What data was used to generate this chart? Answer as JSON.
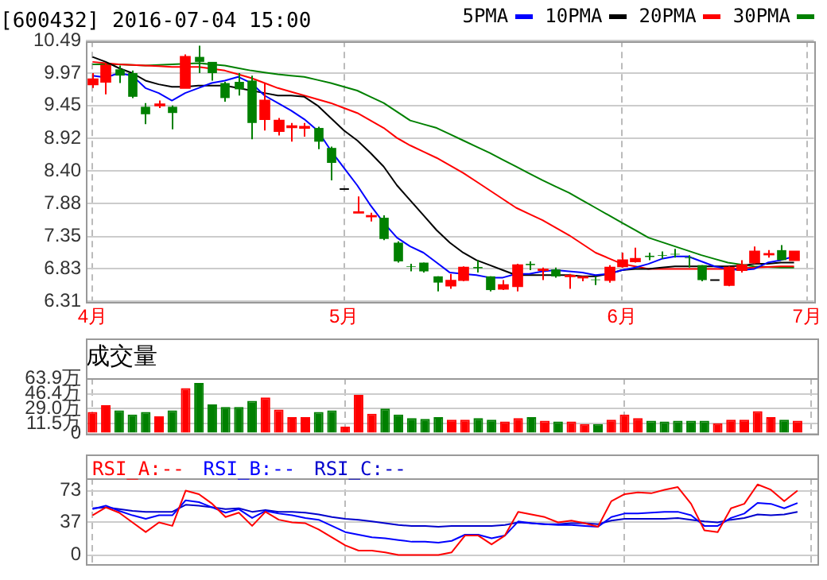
{
  "chart_data": [
    {
      "type": "candlestick",
      "title": "[600432] 2016-07-04 15:00",
      "legend": "top right",
      "grid": true,
      "categories": [
        "4月",
        null,
        null,
        null,
        null,
        null,
        null,
        null,
        null,
        null,
        null,
        null,
        null,
        null,
        null,
        null,
        null,
        null,
        null,
        "5月",
        null,
        null,
        null,
        null,
        null,
        null,
        null,
        null,
        null,
        null,
        null,
        null,
        null,
        null,
        null,
        null,
        null,
        null,
        null,
        null,
        "6月",
        null,
        null,
        null,
        null,
        null,
        null,
        null,
        null,
        null,
        null,
        null,
        null,
        null,
        "7月"
      ],
      "ylim": [
        6.31,
        10.49
      ],
      "yticks": [
        6.31,
        6.83,
        7.35,
        7.88,
        {
          "value": 8.4,
          "label": "8.40"
        },
        8.92,
        9.45,
        9.97,
        10.49
      ],
      "ohlc": [
        [
          9.79,
          9.97,
          9.73,
          9.87
        ],
        [
          9.83,
          10.13,
          9.63,
          10.09
        ],
        [
          10.03,
          10.09,
          9.81,
          9.93
        ],
        [
          9.97,
          10.01,
          9.57,
          9.59
        ],
        [
          9.43,
          9.49,
          9.15,
          9.31
        ],
        [
          9.45,
          9.53,
          9.41,
          9.47
        ],
        [
          9.43,
          9.45,
          9.07,
          9.33
        ],
        [
          9.73,
          10.27,
          9.73,
          10.23
        ],
        [
          10.23,
          10.41,
          9.97,
          10.15
        ],
        [
          10.15,
          10.15,
          9.85,
          9.97
        ],
        [
          9.81,
          9.83,
          9.51,
          9.57
        ],
        [
          9.83,
          9.97,
          9.61,
          9.71
        ],
        [
          9.85,
          9.93,
          8.91,
          9.17
        ],
        [
          9.23,
          9.81,
          9.05,
          9.53
        ],
        [
          9.04,
          9.25,
          8.97,
          9.21
        ],
        [
          9.1,
          9.17,
          8.87,
          9.12
        ],
        [
          9.09,
          9.17,
          8.95,
          9.11
        ],
        [
          9.09,
          9.11,
          8.75,
          8.87
        ],
        [
          8.77,
          8.79,
          8.25,
          8.53
        ],
        [
          8.11,
          8.11,
          8.11,
          8.11
        ],
        [
          7.73,
          7.99,
          7.73,
          7.74
        ],
        [
          7.67,
          7.73,
          7.59,
          7.68
        ],
        [
          7.65,
          7.69,
          7.29,
          7.31
        ],
        [
          7.25,
          7.27,
          6.93,
          6.95
        ],
        [
          6.87,
          6.91,
          6.79,
          6.86
        ],
        [
          6.93,
          6.93,
          6.77,
          6.79
        ],
        [
          6.71,
          6.71,
          6.47,
          6.61
        ],
        [
          6.56,
          6.75,
          6.51,
          6.64
        ],
        [
          6.65,
          6.87,
          6.63,
          6.85
        ],
        [
          6.86,
          6.97,
          6.77,
          6.84
        ],
        [
          6.71,
          6.71,
          6.47,
          6.49
        ],
        [
          6.51,
          6.65,
          6.49,
          6.57
        ],
        [
          6.55,
          6.91,
          6.47,
          6.89
        ],
        [
          6.91,
          6.95,
          6.81,
          6.89
        ],
        [
          6.81,
          6.85,
          6.65,
          6.82
        ],
        [
          6.82,
          6.85,
          6.69,
          6.71
        ],
        [
          6.71,
          6.75,
          6.51,
          6.72
        ],
        [
          6.69,
          6.71,
          6.63,
          6.7
        ],
        [
          6.66,
          6.71,
          6.57,
          6.65
        ],
        [
          6.65,
          6.89,
          6.61,
          6.85
        ],
        [
          6.87,
          7.09,
          6.85,
          6.97
        ],
        [
          6.95,
          7.17,
          6.93,
          6.99
        ],
        [
          7.04,
          7.09,
          6.97,
          7.02
        ],
        [
          7.05,
          7.11,
          6.99,
          7.04
        ],
        [
          7.07,
          7.15,
          7.01,
          7.06
        ],
        [
          7.01,
          7.05,
          6.85,
          7.0
        ],
        [
          6.89,
          6.89,
          6.63,
          6.65
        ],
        [
          6.65,
          6.65,
          6.65,
          6.65
        ],
        [
          6.57,
          6.87,
          6.55,
          6.85
        ],
        [
          6.81,
          6.97,
          6.77,
          6.89
        ],
        [
          6.93,
          7.19,
          6.91,
          7.11
        ],
        [
          7.06,
          7.13,
          7.01,
          7.07
        ],
        [
          7.13,
          7.21,
          6.97,
          6.97
        ],
        [
          6.97,
          7.11,
          6.97,
          7.11
        ],
        null
      ],
      "colors": [
        "#ff0000",
        "#ff0000",
        "#008000",
        "#008000",
        "#008000",
        "#ff0000",
        "#008000",
        "#ff0000",
        "#008000",
        "#008000",
        "#008000",
        "#008000",
        "#008000",
        "#ff0000",
        "#ff0000",
        "#ff0000",
        "#ff0000",
        "#008000",
        "#008000",
        "#000000",
        "#ff0000",
        "#ff0000",
        "#008000",
        "#008000",
        "#008000",
        "#008000",
        "#008000",
        "#ff0000",
        "#ff0000",
        "#008000",
        "#008000",
        "#ff0000",
        "#ff0000",
        "#008000",
        "#ff0000",
        "#008000",
        "#ff0000",
        "#ff0000",
        "#008000",
        "#ff0000",
        "#ff0000",
        "#ff0000",
        "#008000",
        "#008000",
        "#008000",
        "#008000",
        "#008000",
        "#000000",
        "#ff0000",
        "#ff0000",
        "#ff0000",
        "#ff0000",
        "#008000",
        "#ff0000",
        null
      ],
      "series": [
        {
          "name": "5PMA",
          "type": "line",
          "color": "#0000ff",
          "values": [
            9.93,
            9.9,
            9.97,
            9.93,
            9.73,
            9.65,
            9.53,
            9.65,
            9.73,
            9.81,
            9.85,
            9.91,
            9.81,
            9.61,
            9.49,
            9.37,
            9.23,
            9.05,
            8.73,
            8.45,
            8.17,
            7.85,
            7.57,
            7.33,
            7.19,
            7.09,
            6.93,
            6.77,
            6.75,
            6.73,
            6.69,
            6.69,
            6.75,
            6.75,
            6.79,
            6.81,
            6.79,
            6.77,
            6.73,
            6.75,
            6.81,
            6.85,
            6.91,
            6.99,
            7.03,
            7.03,
            6.95,
            6.87,
            6.83,
            6.81,
            6.83,
            6.93,
            6.97,
            7.03,
            null
          ]
        },
        {
          "name": "10PMA",
          "type": "line",
          "color": "#000000",
          "values": [
            10.23,
            10.15,
            10.05,
            9.97,
            9.85,
            9.79,
            9.75,
            9.75,
            9.77,
            9.77,
            9.77,
            9.73,
            9.69,
            9.65,
            9.61,
            9.61,
            9.59,
            9.45,
            9.25,
            9.05,
            8.89,
            8.69,
            8.47,
            8.17,
            7.93,
            7.69,
            7.45,
            7.25,
            7.09,
            6.97,
            6.89,
            6.81,
            6.73,
            6.73,
            6.73,
            6.73,
            6.73,
            6.71,
            6.71,
            6.75,
            6.81,
            6.83,
            6.83,
            6.85,
            6.87,
            6.87,
            6.87,
            6.87,
            6.87,
            6.88,
            6.91,
            6.91,
            6.93,
            6.93,
            null
          ]
        },
        {
          "name": "20PMA",
          "type": "line",
          "color": "#ff0000",
          "values": [
            10.15,
            10.13,
            10.11,
            10.1,
            10.09,
            10.08,
            10.07,
            10.07,
            10.07,
            10.04,
            10.01,
            9.95,
            9.89,
            9.81,
            9.73,
            9.67,
            9.61,
            9.55,
            9.49,
            9.41,
            9.33,
            9.21,
            9.09,
            8.93,
            8.81,
            8.71,
            8.61,
            8.49,
            8.37,
            8.23,
            8.09,
            7.95,
            7.81,
            7.71,
            7.61,
            7.49,
            7.37,
            7.23,
            7.09,
            7.0,
            6.91,
            6.87,
            6.83,
            6.83,
            6.83,
            6.83,
            6.83,
            6.83,
            6.83,
            6.84,
            6.85,
            6.86,
            6.87,
            6.87,
            null
          ]
        },
        {
          "name": "30PMA",
          "type": "line",
          "color": "#008000",
          "values": [
            10.11,
            10.11,
            10.11,
            10.1,
            10.09,
            10.1,
            10.11,
            10.12,
            10.13,
            10.11,
            10.09,
            10.05,
            10.01,
            9.98,
            9.95,
            9.93,
            9.91,
            9.86,
            9.81,
            9.75,
            9.69,
            9.59,
            9.49,
            9.35,
            9.21,
            9.15,
            9.09,
            8.99,
            8.89,
            8.79,
            8.69,
            8.58,
            8.47,
            8.36,
            8.25,
            8.15,
            8.05,
            7.93,
            7.81,
            7.69,
            7.57,
            7.45,
            7.33,
            7.26,
            7.19,
            7.12,
            7.05,
            6.99,
            6.93,
            6.9,
            6.87,
            6.86,
            6.85,
            6.85,
            null
          ]
        }
      ]
    },
    {
      "type": "bar",
      "title": "成交量",
      "grid": true,
      "tick_labels": "y",
      "categories": [
        null,
        null,
        null,
        null,
        null,
        null,
        null,
        null,
        null,
        null,
        null,
        null,
        null,
        null,
        null,
        null,
        null,
        null,
        null,
        null,
        null,
        null,
        null,
        null,
        null,
        null,
        null,
        null,
        null,
        null,
        null,
        null,
        null,
        null,
        null,
        null,
        null,
        null,
        null,
        null,
        null,
        null,
        null,
        null,
        null,
        null,
        null,
        null,
        null,
        null,
        null,
        null,
        null,
        null,
        null
      ],
      "ylim": [
        0,
        64.5
      ],
      "yticks": [
        0,
        {
          "value": 11.5,
          "label": "11.5万"
        },
        {
          "value": 29.0,
          "label": "29.0万"
        },
        {
          "value": 46.4,
          "label": "46.4万"
        },
        {
          "value": 63.9,
          "label": "63.9万"
        }
      ],
      "values": [
        25,
        33,
        27,
        22,
        25,
        20,
        27,
        53,
        59,
        34,
        31,
        31,
        38,
        42,
        28,
        19,
        19,
        25,
        27,
        8,
        45,
        23,
        29,
        22,
        18,
        17,
        19,
        16,
        16,
        18,
        16,
        14,
        18,
        19,
        15,
        14,
        14,
        11,
        11,
        16,
        22,
        18,
        15,
        14,
        15,
        15,
        15,
        12,
        16,
        16,
        26,
        19,
        16,
        15,
        null
      ],
      "colors": [
        "#ff0000",
        "#ff0000",
        "#008000",
        "#008000",
        "#008000",
        "#ff0000",
        "#008000",
        "#ff0000",
        "#008000",
        "#008000",
        "#008000",
        "#008000",
        "#008000",
        "#ff0000",
        "#ff0000",
        "#ff0000",
        "#ff0000",
        "#008000",
        "#008000",
        "#ff0000",
        "#ff0000",
        "#ff0000",
        "#008000",
        "#008000",
        "#008000",
        "#008000",
        "#008000",
        "#ff0000",
        "#ff0000",
        "#008000",
        "#008000",
        "#ff0000",
        "#ff0000",
        "#008000",
        "#ff0000",
        "#008000",
        "#ff0000",
        "#ff0000",
        "#008000",
        "#ff0000",
        "#ff0000",
        "#ff0000",
        "#008000",
        "#008000",
        "#008000",
        "#008000",
        "#008000",
        "#ff0000",
        "#ff0000",
        "#ff0000",
        "#ff0000",
        "#ff0000",
        "#008000",
        "#ff0000",
        null
      ]
    },
    {
      "type": "line",
      "legend": "top left",
      "grid": true,
      "tick_labels": "y",
      "categories": [
        null,
        null,
        null,
        null,
        null,
        null,
        null,
        null,
        null,
        null,
        null,
        null,
        null,
        null,
        null,
        null,
        null,
        null,
        null,
        null,
        null,
        null,
        null,
        null,
        null,
        null,
        null,
        null,
        null,
        null,
        null,
        null,
        null,
        null,
        null,
        null,
        null,
        null,
        null,
        null,
        null,
        null,
        null,
        null,
        null,
        null,
        null,
        null,
        null,
        null,
        null,
        null,
        null,
        null,
        null
      ],
      "ylim": [
        -10,
        87
      ],
      "yticks": [
        0,
        37,
        73
      ],
      "series": [
        {
          "name": "RSI_A:--",
          "color": "#ff0000",
          "values": [
            45,
            54,
            48,
            37,
            26,
            37,
            33,
            73,
            69,
            58,
            43,
            48,
            33,
            49,
            40,
            37,
            36,
            29,
            20,
            11,
            5,
            5,
            3,
            0,
            0,
            0,
            0,
            3,
            22,
            22,
            12,
            22,
            49,
            46,
            43,
            37,
            39,
            36,
            32,
            61,
            69,
            71,
            70,
            74,
            77,
            58,
            28,
            26,
            53,
            58,
            80,
            74,
            61,
            73,
            null
          ]
        },
        {
          "name": "RSI_B:--",
          "color": "#0000ff",
          "values": [
            52,
            56,
            50,
            45,
            41,
            45,
            45,
            62,
            60,
            54,
            48,
            52,
            42,
            50,
            47,
            45,
            42,
            40,
            33,
            26,
            23,
            20,
            19,
            17,
            15,
            15,
            14,
            16,
            23,
            23,
            19,
            22,
            38,
            36,
            35,
            34,
            34,
            33,
            32,
            43,
            47,
            47,
            48,
            49,
            49,
            45,
            33,
            33,
            42,
            47,
            59,
            58,
            53,
            59,
            null
          ]
        },
        {
          "name": "RSI_C:--",
          "color": "#0000cc",
          "values": [
            53,
            54,
            52,
            50,
            49,
            49,
            49,
            57,
            56,
            54,
            52,
            53,
            49,
            51,
            49,
            49,
            48,
            46,
            43,
            41,
            40,
            38,
            36,
            34,
            33,
            33,
            32,
            33,
            33,
            33,
            33,
            34,
            37,
            36,
            35,
            35,
            36,
            36,
            35,
            39,
            41,
            41,
            41,
            41,
            42,
            40,
            38,
            37,
            40,
            42,
            46,
            45,
            46,
            49,
            null
          ]
        }
      ]
    }
  ]
}
